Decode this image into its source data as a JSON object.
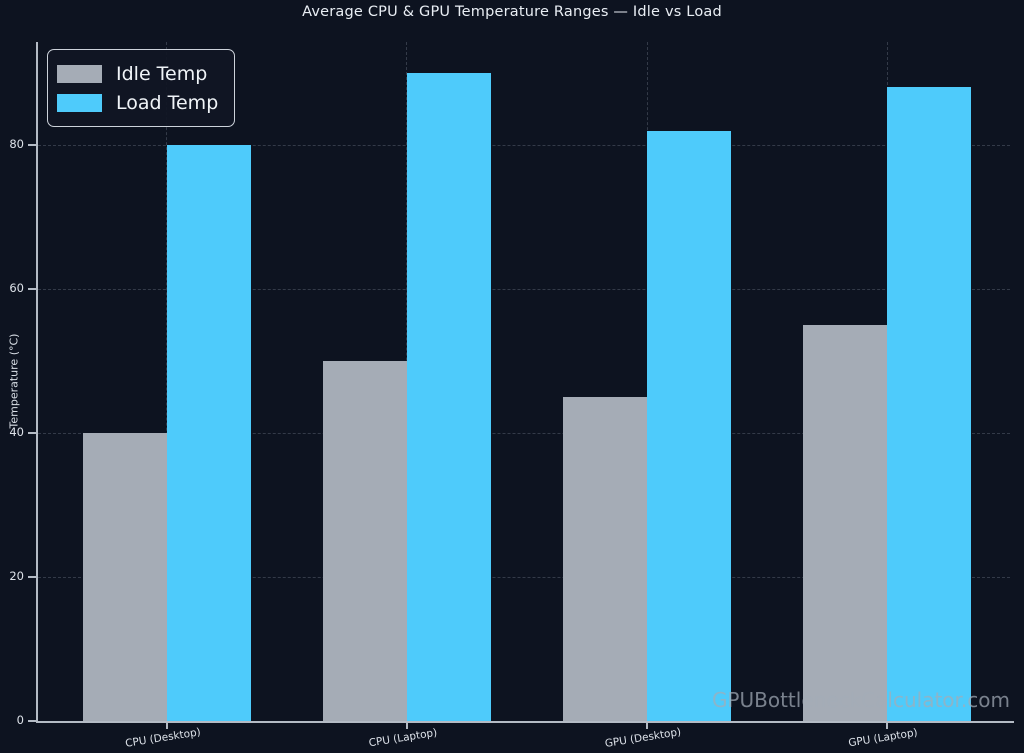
{
  "page": {
    "background": "#0d1320",
    "watermark": "GPUBottleneckCalculator.com"
  },
  "chart_data": {
    "type": "bar",
    "title": "Average CPU & GPU Temperature Ranges — Idle vs Load",
    "ylabel": "Temperature (°C)",
    "xlabel": "",
    "categories": [
      "CPU (Desktop)",
      "CPU (Laptop)",
      "GPU (Desktop)",
      "GPU (Laptop)"
    ],
    "series": [
      {
        "name": "Idle Temp",
        "color": "#a5acb6",
        "values": [
          40,
          50,
          45,
          55
        ]
      },
      {
        "name": "Load Temp",
        "color": "#4ecbfb",
        "values": [
          80,
          90,
          82,
          88
        ]
      }
    ],
    "yticks": [
      0,
      20,
      40,
      60,
      80
    ],
    "ylim": [
      0,
      94.3
    ],
    "grid": true,
    "grid_style": "dashed",
    "legend_position": "upper-left",
    "axis_color": "#b4bbc5",
    "text_color": "#dde2e9",
    "background_color": "#0d1320"
  }
}
